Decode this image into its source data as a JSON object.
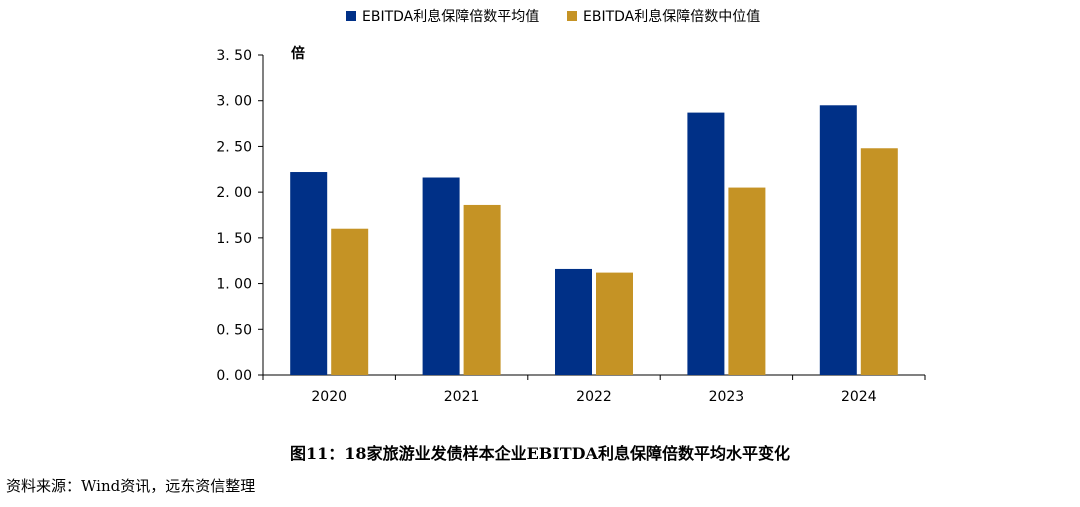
{
  "chart_data": {
    "type": "bar",
    "unit_label": "倍",
    "categories": [
      "2020",
      "2021",
      "2022",
      "2023",
      "2024"
    ],
    "series": [
      {
        "name": "EBITDA利息保障倍数平均值",
        "color": "#003087",
        "values": [
          2.22,
          2.16,
          1.16,
          2.87,
          2.95
        ]
      },
      {
        "name": "EBITDA利息保障倍数中位值",
        "color": "#C59325",
        "values": [
          1.6,
          1.86,
          1.12,
          2.05,
          2.48
        ]
      }
    ],
    "y_ticks": [
      "0. 00",
      "0. 50",
      "1. 00",
      "1. 50",
      "2. 00",
      "2. 50",
      "3. 00",
      "3. 50"
    ],
    "ylim": [
      0,
      3.5
    ],
    "legend_position": "top"
  },
  "caption": "图11：18家旅游业发债样本企业EBITDA利息保障倍数平均水平变化",
  "source": "资料来源：Wind资讯，远东资信整理"
}
